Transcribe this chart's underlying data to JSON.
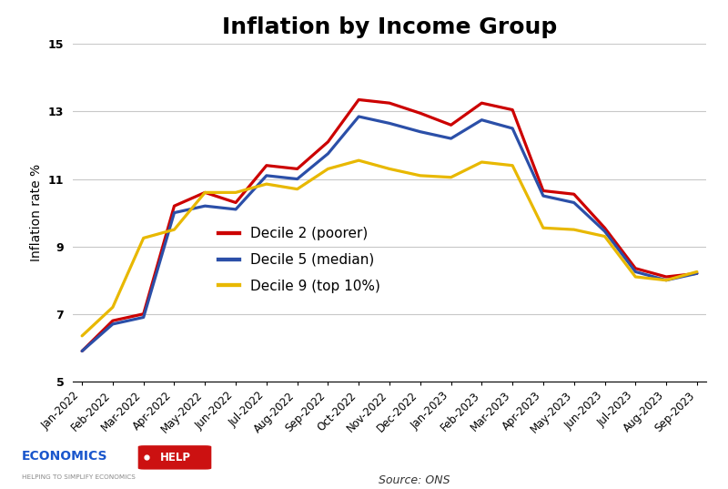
{
  "title": "Inflation by Income Group",
  "ylabel": "Inflation rate %",
  "source": "Source: ONS",
  "ylim": [
    5,
    15
  ],
  "yticks": [
    5,
    7,
    9,
    11,
    13,
    15
  ],
  "categories": [
    "Jan-2022",
    "Feb-2022",
    "Mar-2022",
    "Apr-2022",
    "May-2022",
    "Jun-2022",
    "Jul-2022",
    "Aug-2022",
    "Sep-2022",
    "Oct-2022",
    "Nov-2022",
    "Dec-2022",
    "Jan-2023",
    "Feb-2023",
    "Mar-2023",
    "Apr-2023",
    "May-2023",
    "Jun-2023",
    "Jul-2023",
    "Aug-2023",
    "Sep-2023"
  ],
  "series": {
    "Decile 2 (poorer)": {
      "color": "#cc0000",
      "values": [
        5.9,
        6.8,
        7.0,
        10.2,
        10.6,
        10.3,
        11.4,
        11.3,
        12.1,
        13.35,
        13.25,
        12.95,
        12.6,
        13.25,
        13.05,
        10.65,
        10.55,
        9.55,
        8.35,
        8.1,
        8.2
      ]
    },
    "Decile 5 (median)": {
      "color": "#2b4fa8",
      "values": [
        5.9,
        6.7,
        6.9,
        10.0,
        10.2,
        10.1,
        11.1,
        11.0,
        11.75,
        12.85,
        12.65,
        12.4,
        12.2,
        12.75,
        12.5,
        10.5,
        10.3,
        9.45,
        8.25,
        8.0,
        8.2
      ]
    },
    "Decile 9 (top 10%)": {
      "color": "#e8b800",
      "values": [
        6.35,
        7.2,
        9.25,
        9.5,
        10.6,
        10.6,
        10.85,
        10.7,
        11.3,
        11.55,
        11.3,
        11.1,
        11.05,
        11.5,
        11.4,
        9.55,
        9.5,
        9.3,
        8.1,
        8.0,
        8.25
      ]
    }
  },
  "background_color": "#ffffff",
  "grid_color": "#c8c8c8",
  "title_fontsize": 18,
  "label_fontsize": 10,
  "tick_fontsize": 8.5,
  "legend_fontsize": 11,
  "line_width": 2.3
}
